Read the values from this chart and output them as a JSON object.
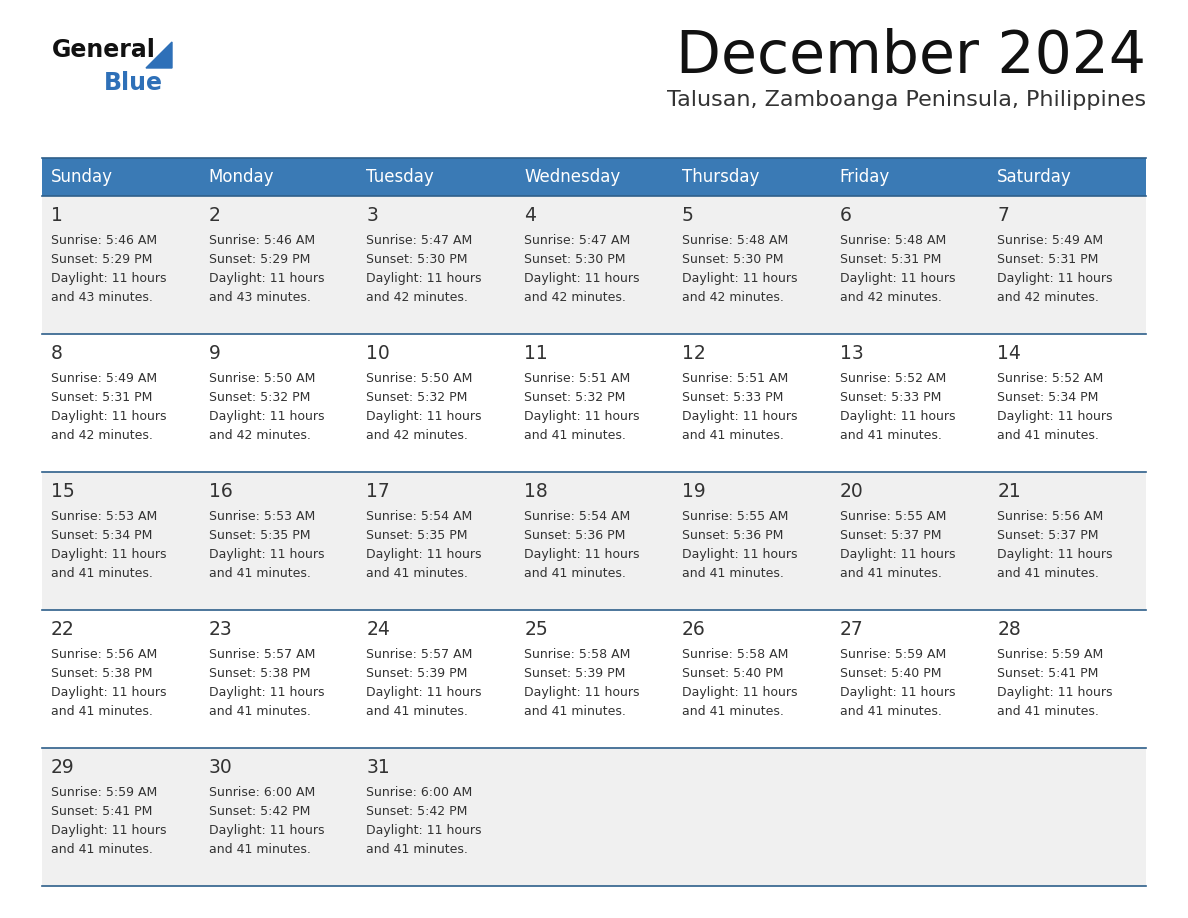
{
  "title": "December 2024",
  "subtitle": "Talusan, Zamboanga Peninsula, Philippines",
  "header_bg": "#3a7ab5",
  "header_text": "#ffffff",
  "row_bg_odd": "#f0f0f0",
  "row_bg_even": "#ffffff",
  "border_color": "#2e5f8a",
  "text_color": "#333333",
  "days_of_week": [
    "Sunday",
    "Monday",
    "Tuesday",
    "Wednesday",
    "Thursday",
    "Friday",
    "Saturday"
  ],
  "weeks": [
    [
      {
        "day": "1",
        "sunrise": "5:46 AM",
        "sunset": "5:29 PM",
        "dl1": "11 hours",
        "dl2": "and 43 minutes."
      },
      {
        "day": "2",
        "sunrise": "5:46 AM",
        "sunset": "5:29 PM",
        "dl1": "11 hours",
        "dl2": "and 43 minutes."
      },
      {
        "day": "3",
        "sunrise": "5:47 AM",
        "sunset": "5:30 PM",
        "dl1": "11 hours",
        "dl2": "and 42 minutes."
      },
      {
        "day": "4",
        "sunrise": "5:47 AM",
        "sunset": "5:30 PM",
        "dl1": "11 hours",
        "dl2": "and 42 minutes."
      },
      {
        "day": "5",
        "sunrise": "5:48 AM",
        "sunset": "5:30 PM",
        "dl1": "11 hours",
        "dl2": "and 42 minutes."
      },
      {
        "day": "6",
        "sunrise": "5:48 AM",
        "sunset": "5:31 PM",
        "dl1": "11 hours",
        "dl2": "and 42 minutes."
      },
      {
        "day": "7",
        "sunrise": "5:49 AM",
        "sunset": "5:31 PM",
        "dl1": "11 hours",
        "dl2": "and 42 minutes."
      }
    ],
    [
      {
        "day": "8",
        "sunrise": "5:49 AM",
        "sunset": "5:31 PM",
        "dl1": "11 hours",
        "dl2": "and 42 minutes."
      },
      {
        "day": "9",
        "sunrise": "5:50 AM",
        "sunset": "5:32 PM",
        "dl1": "11 hours",
        "dl2": "and 42 minutes."
      },
      {
        "day": "10",
        "sunrise": "5:50 AM",
        "sunset": "5:32 PM",
        "dl1": "11 hours",
        "dl2": "and 42 minutes."
      },
      {
        "day": "11",
        "sunrise": "5:51 AM",
        "sunset": "5:32 PM",
        "dl1": "11 hours",
        "dl2": "and 41 minutes."
      },
      {
        "day": "12",
        "sunrise": "5:51 AM",
        "sunset": "5:33 PM",
        "dl1": "11 hours",
        "dl2": "and 41 minutes."
      },
      {
        "day": "13",
        "sunrise": "5:52 AM",
        "sunset": "5:33 PM",
        "dl1": "11 hours",
        "dl2": "and 41 minutes."
      },
      {
        "day": "14",
        "sunrise": "5:52 AM",
        "sunset": "5:34 PM",
        "dl1": "11 hours",
        "dl2": "and 41 minutes."
      }
    ],
    [
      {
        "day": "15",
        "sunrise": "5:53 AM",
        "sunset": "5:34 PM",
        "dl1": "11 hours",
        "dl2": "and 41 minutes."
      },
      {
        "day": "16",
        "sunrise": "5:53 AM",
        "sunset": "5:35 PM",
        "dl1": "11 hours",
        "dl2": "and 41 minutes."
      },
      {
        "day": "17",
        "sunrise": "5:54 AM",
        "sunset": "5:35 PM",
        "dl1": "11 hours",
        "dl2": "and 41 minutes."
      },
      {
        "day": "18",
        "sunrise": "5:54 AM",
        "sunset": "5:36 PM",
        "dl1": "11 hours",
        "dl2": "and 41 minutes."
      },
      {
        "day": "19",
        "sunrise": "5:55 AM",
        "sunset": "5:36 PM",
        "dl1": "11 hours",
        "dl2": "and 41 minutes."
      },
      {
        "day": "20",
        "sunrise": "5:55 AM",
        "sunset": "5:37 PM",
        "dl1": "11 hours",
        "dl2": "and 41 minutes."
      },
      {
        "day": "21",
        "sunrise": "5:56 AM",
        "sunset": "5:37 PM",
        "dl1": "11 hours",
        "dl2": "and 41 minutes."
      }
    ],
    [
      {
        "day": "22",
        "sunrise": "5:56 AM",
        "sunset": "5:38 PM",
        "dl1": "11 hours",
        "dl2": "and 41 minutes."
      },
      {
        "day": "23",
        "sunrise": "5:57 AM",
        "sunset": "5:38 PM",
        "dl1": "11 hours",
        "dl2": "and 41 minutes."
      },
      {
        "day": "24",
        "sunrise": "5:57 AM",
        "sunset": "5:39 PM",
        "dl1": "11 hours",
        "dl2": "and 41 minutes."
      },
      {
        "day": "25",
        "sunrise": "5:58 AM",
        "sunset": "5:39 PM",
        "dl1": "11 hours",
        "dl2": "and 41 minutes."
      },
      {
        "day": "26",
        "sunrise": "5:58 AM",
        "sunset": "5:40 PM",
        "dl1": "11 hours",
        "dl2": "and 41 minutes."
      },
      {
        "day": "27",
        "sunrise": "5:59 AM",
        "sunset": "5:40 PM",
        "dl1": "11 hours",
        "dl2": "and 41 minutes."
      },
      {
        "day": "28",
        "sunrise": "5:59 AM",
        "sunset": "5:41 PM",
        "dl1": "11 hours",
        "dl2": "and 41 minutes."
      }
    ],
    [
      {
        "day": "29",
        "sunrise": "5:59 AM",
        "sunset": "5:41 PM",
        "dl1": "11 hours",
        "dl2": "and 41 minutes."
      },
      {
        "day": "30",
        "sunrise": "6:00 AM",
        "sunset": "5:42 PM",
        "dl1": "11 hours",
        "dl2": "and 41 minutes."
      },
      {
        "day": "31",
        "sunrise": "6:00 AM",
        "sunset": "5:42 PM",
        "dl1": "11 hours",
        "dl2": "and 41 minutes."
      },
      null,
      null,
      null,
      null
    ]
  ],
  "logo_triangle_color": "#2e70b8",
  "logo_blue_color": "#2e70b8"
}
